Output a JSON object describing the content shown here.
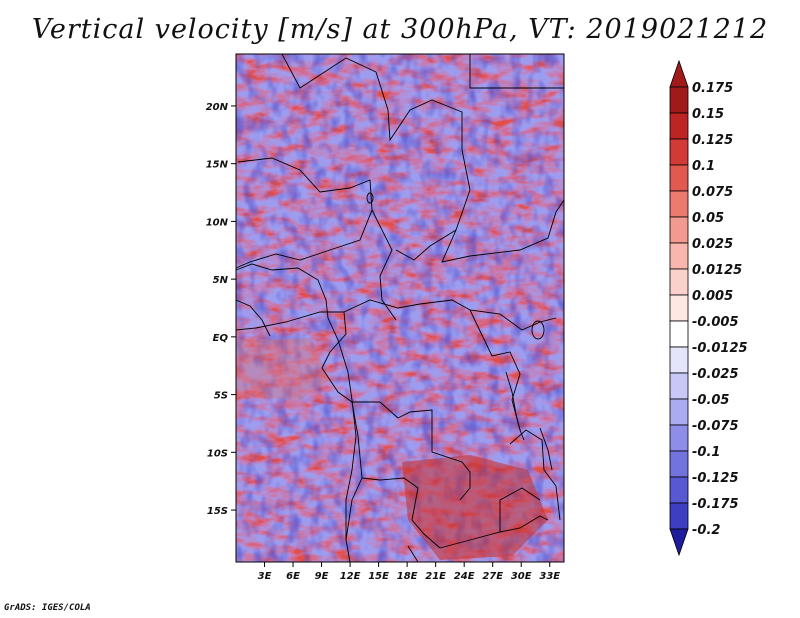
{
  "title": "Vertical velocity [m/s] at 300hPa, VT: 2019021212",
  "credit": "GrADS: IGES/COLA",
  "map": {
    "lon_range": [
      0,
      34.5
    ],
    "lat_range": [
      -19.5,
      24.5
    ],
    "lon_ticks": [
      {
        "value": 3,
        "label": "3E"
      },
      {
        "value": 6,
        "label": "6E"
      },
      {
        "value": 9,
        "label": "9E"
      },
      {
        "value": 12,
        "label": "12E"
      },
      {
        "value": 15,
        "label": "15E"
      },
      {
        "value": 18,
        "label": "18E"
      },
      {
        "value": 21,
        "label": "21E"
      },
      {
        "value": 24,
        "label": "24E"
      },
      {
        "value": 27,
        "label": "27E"
      },
      {
        "value": 30,
        "label": "30E"
      },
      {
        "value": 33,
        "label": "33E"
      }
    ],
    "lat_ticks": [
      {
        "value": 20,
        "label": "20N"
      },
      {
        "value": 15,
        "label": "15N"
      },
      {
        "value": 10,
        "label": "10N"
      },
      {
        "value": 5,
        "label": "5N"
      },
      {
        "value": 0,
        "label": "EQ"
      },
      {
        "value": -5,
        "label": "5S"
      },
      {
        "value": -10,
        "label": "10S"
      },
      {
        "value": -15,
        "label": "15S"
      }
    ]
  },
  "colorbar": {
    "levels": [
      {
        "label": "0.175",
        "color": "#a11a1a"
      },
      {
        "label": "0.15",
        "color": "#bd2424"
      },
      {
        "label": "0.125",
        "color": "#d23a35"
      },
      {
        "label": "0.1",
        "color": "#e05a50"
      },
      {
        "label": "0.075",
        "color": "#ec7a6f"
      },
      {
        "label": "0.05",
        "color": "#f39a90"
      },
      {
        "label": "0.025",
        "color": "#f8b7ae"
      },
      {
        "label": "0.0125",
        "color": "#fbd2cb"
      },
      {
        "label": "0.005",
        "color": "#fde8e4"
      },
      {
        "label": "-0.005",
        "color": "#ffffff"
      },
      {
        "label": "-0.0125",
        "color": "#e4e4fb"
      },
      {
        "label": "-0.025",
        "color": "#c8c8f6"
      },
      {
        "label": "-0.05",
        "color": "#ababf0"
      },
      {
        "label": "-0.075",
        "color": "#8e8ee8"
      },
      {
        "label": "-0.1",
        "color": "#7373de"
      },
      {
        "label": "-0.125",
        "color": "#5858d2"
      },
      {
        "label": "-0.175",
        "color": "#3e3ec3"
      },
      {
        "label": "-0.2",
        "color": "#2626b0"
      }
    ],
    "top_extend_color": "#a11a1a",
    "bottom_extend_color": "#1c1c9c"
  }
}
